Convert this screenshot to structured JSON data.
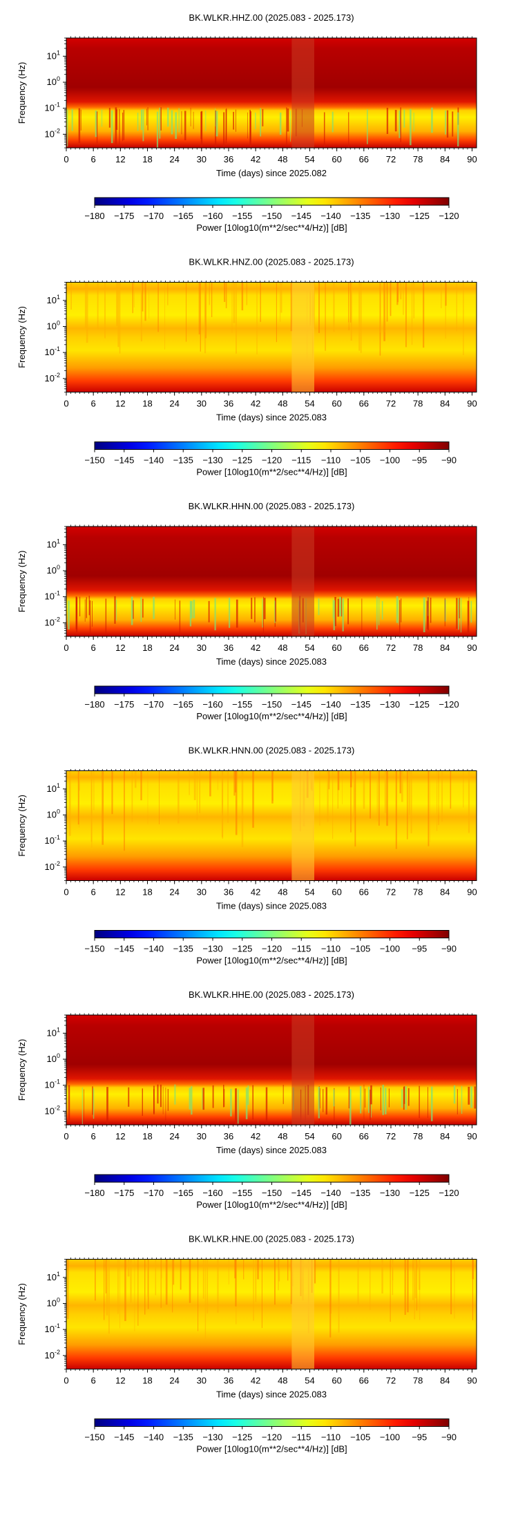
{
  "chart_data": [
    {
      "type": "heatmap",
      "title": "BK.WLKR.HHZ.00 (2025.083 - 2025.173)",
      "xlabel": "Time (days) since 2025.082",
      "ylabel": "Frequency (Hz)",
      "x_ticks": [
        "0",
        "6",
        "12",
        "18",
        "24",
        "30",
        "36",
        "42",
        "48",
        "54",
        "60",
        "66",
        "72",
        "78",
        "84",
        "90"
      ],
      "y_ticks": [
        "10^1",
        "10^0",
        "10^-1",
        "10^-2"
      ],
      "xlim": [
        0,
        91
      ],
      "ylim_hz": [
        0.003,
        50
      ],
      "y_scale": "log",
      "colorbar": {
        "label": "Power [10log10(m**2/sec**4/Hz)] [dB]",
        "ticks": [
          "−180",
          "−175",
          "−170",
          "−165",
          "−160",
          "−155",
          "−150",
          "−145",
          "−140",
          "−135",
          "−130",
          "−125",
          "−120"
        ],
        "range_db": [
          -180,
          -120
        ]
      }
    },
    {
      "type": "heatmap",
      "title": "BK.WLKR.HNZ.00 (2025.083 - 2025.173)",
      "xlabel": "Time (days) since 2025.083",
      "ylabel": "Frequency (Hz)",
      "x_ticks": [
        "0",
        "6",
        "12",
        "18",
        "24",
        "30",
        "36",
        "42",
        "48",
        "54",
        "60",
        "66",
        "72",
        "78",
        "84",
        "90"
      ],
      "y_ticks": [
        "10^1",
        "10^0",
        "10^-1",
        "10^-2"
      ],
      "xlim": [
        0,
        91
      ],
      "ylim_hz": [
        0.003,
        50
      ],
      "y_scale": "log",
      "colorbar": {
        "label": "Power [10log10(m**2/sec**4/Hz)] [dB]",
        "ticks": [
          "−150",
          "−145",
          "−140",
          "−135",
          "−130",
          "−125",
          "−120",
          "−115",
          "−110",
          "−105",
          "−100",
          "−95",
          "−90"
        ],
        "range_db": [
          -150,
          -90
        ]
      }
    },
    {
      "type": "heatmap",
      "title": "BK.WLKR.HHN.00 (2025.083 - 2025.173)",
      "xlabel": "Time (days) since 2025.083",
      "ylabel": "Frequency (Hz)",
      "x_ticks": [
        "0",
        "6",
        "12",
        "18",
        "24",
        "30",
        "36",
        "42",
        "48",
        "54",
        "60",
        "66",
        "72",
        "78",
        "84",
        "90"
      ],
      "y_ticks": [
        "10^1",
        "10^0",
        "10^-1",
        "10^-2"
      ],
      "xlim": [
        0,
        91
      ],
      "ylim_hz": [
        0.003,
        50
      ],
      "y_scale": "log",
      "colorbar": {
        "label": "Power [10log10(m**2/sec**4/Hz)] [dB]",
        "ticks": [
          "−180",
          "−175",
          "−170",
          "−165",
          "−160",
          "−155",
          "−150",
          "−145",
          "−140",
          "−135",
          "−130",
          "−125",
          "−120"
        ],
        "range_db": [
          -180,
          -120
        ]
      }
    },
    {
      "type": "heatmap",
      "title": "BK.WLKR.HNN.00 (2025.083 - 2025.173)",
      "xlabel": "Time (days) since 2025.083",
      "ylabel": "Frequency (Hz)",
      "x_ticks": [
        "0",
        "6",
        "12",
        "18",
        "24",
        "30",
        "36",
        "42",
        "48",
        "54",
        "60",
        "66",
        "72",
        "78",
        "84",
        "90"
      ],
      "y_ticks": [
        "10^1",
        "10^0",
        "10^-1",
        "10^-2"
      ],
      "xlim": [
        0,
        91
      ],
      "ylim_hz": [
        0.003,
        50
      ],
      "y_scale": "log",
      "colorbar": {
        "label": "Power [10log10(m**2/sec**4/Hz)] [dB]",
        "ticks": [
          "−150",
          "−145",
          "−140",
          "−135",
          "−130",
          "−125",
          "−120",
          "−115",
          "−110",
          "−105",
          "−100",
          "−95",
          "−90"
        ],
        "range_db": [
          -150,
          -90
        ]
      }
    },
    {
      "type": "heatmap",
      "title": "BK.WLKR.HHE.00 (2025.083 - 2025.173)",
      "xlabel": "Time (days) since 2025.083",
      "ylabel": "Frequency (Hz)",
      "x_ticks": [
        "0",
        "6",
        "12",
        "18",
        "24",
        "30",
        "36",
        "42",
        "48",
        "54",
        "60",
        "66",
        "72",
        "78",
        "84",
        "90"
      ],
      "y_ticks": [
        "10^1",
        "10^0",
        "10^-1",
        "10^-2"
      ],
      "xlim": [
        0,
        91
      ],
      "ylim_hz": [
        0.003,
        50
      ],
      "y_scale": "log",
      "colorbar": {
        "label": "Power [10log10(m**2/sec**4/Hz)] [dB]",
        "ticks": [
          "−180",
          "−175",
          "−170",
          "−165",
          "−160",
          "−155",
          "−150",
          "−145",
          "−140",
          "−135",
          "−130",
          "−125",
          "−120"
        ],
        "range_db": [
          -180,
          -120
        ]
      }
    },
    {
      "type": "heatmap",
      "title": "BK.WLKR.HNE.00 (2025.083 - 2025.173)",
      "xlabel": "Time (days) since 2025.083",
      "ylabel": "Frequency (Hz)",
      "x_ticks": [
        "0",
        "6",
        "12",
        "18",
        "24",
        "30",
        "36",
        "42",
        "48",
        "54",
        "60",
        "66",
        "72",
        "78",
        "84",
        "90"
      ],
      "y_ticks": [
        "10^1",
        "10^0",
        "10^-1",
        "10^-2"
      ],
      "xlim": [
        0,
        91
      ],
      "ylim_hz": [
        0.003,
        50
      ],
      "y_scale": "log",
      "colorbar": {
        "label": "Power [10log10(m**2/sec**4/Hz)] [dB]",
        "ticks": [
          "−150",
          "−145",
          "−140",
          "−135",
          "−130",
          "−125",
          "−120",
          "−115",
          "−110",
          "−105",
          "−100",
          "−95",
          "−90"
        ],
        "range_db": [
          -150,
          -90
        ]
      }
    }
  ]
}
